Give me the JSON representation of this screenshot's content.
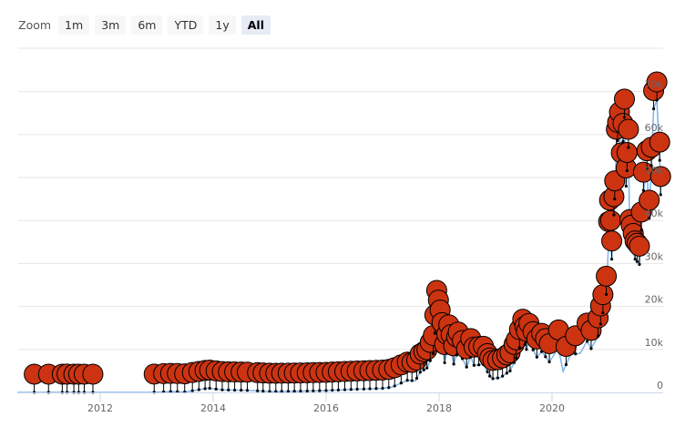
{
  "zoom": {
    "label": "Zoom",
    "buttons": [
      "1m",
      "3m",
      "6m",
      "YTD",
      "1y",
      "All"
    ],
    "active": "All"
  },
  "chart_data": {
    "type": "line",
    "title": "",
    "xlabel": "",
    "ylabel": "",
    "ylim": [
      0,
      80000
    ],
    "xlim": [
      "2010-07",
      "2021-12"
    ],
    "x_ticks": [
      "2012",
      "2014",
      "2016",
      "2018",
      "2020"
    ],
    "y_ticks": [
      {
        "v": 0,
        "label": "0"
      },
      {
        "v": 10000,
        "label": "10k"
      },
      {
        "v": 20000,
        "label": "20k"
      },
      {
        "v": 30000,
        "label": "30k"
      },
      {
        "v": 40000,
        "label": "40k"
      },
      {
        "v": 50000,
        "label": "50k"
      },
      {
        "v": 60000,
        "label": "60k"
      },
      {
        "v": 70000,
        "label": "70k"
      }
    ],
    "grid": true,
    "line_color": "#7cb5ec",
    "flag_color": "#cc3311",
    "series": [
      {
        "values": [
          [
            "2010-07-15",
            0.1
          ],
          [
            "2010-11-01",
            0.3
          ],
          [
            "2011-06-08",
            15
          ],
          [
            "2011-12-01",
            3
          ],
          [
            "2012-06-01",
            6
          ],
          [
            "2012-12-01",
            13
          ],
          [
            "2013-04-09",
            200
          ],
          [
            "2013-07-01",
            90
          ],
          [
            "2013-12-01",
            1000
          ],
          [
            "2014-03-01",
            600
          ],
          [
            "2014-09-01",
            450
          ],
          [
            "2015-01-15",
            200
          ],
          [
            "2015-07-01",
            280
          ],
          [
            "2016-01-01",
            430
          ],
          [
            "2016-06-15",
            700
          ],
          [
            "2016-12-31",
            960
          ],
          [
            "2017-03-01",
            1200
          ],
          [
            "2017-06-10",
            2800
          ],
          [
            "2017-08-01",
            2700
          ],
          [
            "2017-09-01",
            4700
          ],
          [
            "2017-10-15",
            5700
          ],
          [
            "2017-11-25",
            9000
          ],
          [
            "2017-12-17",
            19500
          ],
          [
            "2018-01-15",
            13500
          ],
          [
            "2018-02-06",
            6900
          ],
          [
            "2018-03-05",
            11500
          ],
          [
            "2018-04-06",
            6600
          ],
          [
            "2018-05-05",
            9800
          ],
          [
            "2018-06-28",
            5900
          ],
          [
            "2018-07-25",
            8300
          ],
          [
            "2018-08-15",
            6300
          ],
          [
            "2018-10-15",
            6500
          ],
          [
            "2018-11-25",
            3800
          ],
          [
            "2018-12-15",
            3200
          ],
          [
            "2019-02-01",
            3450
          ],
          [
            "2019-04-05",
            5000
          ],
          [
            "2019-05-15",
            8000
          ],
          [
            "2019-06-26",
            12800
          ],
          [
            "2019-07-20",
            10000
          ],
          [
            "2019-08-05",
            11800
          ],
          [
            "2019-09-25",
            8200
          ],
          [
            "2019-10-26",
            9500
          ],
          [
            "2019-12-15",
            7100
          ],
          [
            "2020-02-12",
            10300
          ],
          [
            "2020-03-12",
            4900
          ],
          [
            "2020-05-01",
            8800
          ],
          [
            "2020-07-01",
            9100
          ],
          [
            "2020-08-15",
            11900
          ],
          [
            "2020-09-10",
            10200
          ],
          [
            "2020-10-25",
            13100
          ],
          [
            "2020-11-25",
            18500
          ],
          [
            "2020-12-17",
            22800
          ],
          [
            "2021-01-08",
            40500
          ],
          [
            "2021-01-22",
            31000
          ],
          [
            "2021-02-10",
            45000
          ],
          [
            "2021-02-21",
            57000
          ],
          [
            "2021-03-13",
            61000
          ],
          [
            "2021-03-25",
            51500
          ],
          [
            "2021-04-14",
            64000
          ],
          [
            "2021-04-25",
            48000
          ],
          [
            "2021-05-10",
            57000
          ],
          [
            "2021-05-19",
            36000
          ],
          [
            "2021-06-22",
            31000
          ],
          [
            "2021-07-20",
            29800
          ],
          [
            "2021-08-15",
            47000
          ],
          [
            "2021-09-07",
            52000
          ],
          [
            "2021-09-21",
            40500
          ],
          [
            "2021-10-20",
            66000
          ],
          [
            "2021-11-10",
            68000
          ],
          [
            "2021-11-28",
            54000
          ],
          [
            "2021-12-04",
            46000
          ]
        ]
      }
    ],
    "flags": [
      "2010-11-01",
      "2011-02-01",
      "2011-05-01",
      "2011-06-01",
      "2011-07-15",
      "2011-08-15",
      "2011-09-20",
      "2011-11-15",
      "2012-12-15",
      "2013-02-15",
      "2013-04-01",
      "2013-05-15",
      "2013-07-01",
      "2013-08-20",
      "2013-10-01",
      "2013-11-10",
      "2013-12-10",
      "2014-01-20",
      "2014-03-01",
      "2014-04-10",
      "2014-05-20",
      "2014-07-01",
      "2014-08-10",
      "2014-10-15",
      "2014-11-20",
      "2015-01-01",
      "2015-02-10",
      "2015-03-20",
      "2015-05-01",
      "2015-06-10",
      "2015-07-20",
      "2015-09-01",
      "2015-10-10",
      "2015-11-20",
      "2016-01-01",
      "2016-02-10",
      "2016-03-20",
      "2016-05-01",
      "2016-06-10",
      "2016-07-20",
      "2016-09-01",
      "2016-10-10",
      "2016-11-20",
      "2017-01-01",
      "2017-02-10",
      "2017-03-20",
      "2017-05-01",
      "2017-06-10",
      "2017-07-10",
      "2017-08-10",
      "2017-09-01",
      "2017-09-25",
      "2017-10-15",
      "2017-11-05",
      "2017-11-25",
      "2017-12-05",
      "2017-12-17",
      "2017-12-28",
      "2018-01-08",
      "2018-01-20",
      "2018-02-06",
      "2018-02-20",
      "2018-03-05",
      "2018-03-20",
      "2018-04-06",
      "2018-04-25",
      "2018-05-05",
      "2018-06-01",
      "2018-06-28",
      "2018-07-25",
      "2018-08-15",
      "2018-09-15",
      "2018-10-15",
      "2018-11-10",
      "2018-11-25",
      "2018-12-15",
      "2019-01-15",
      "2019-02-15",
      "2019-03-15",
      "2019-04-05",
      "2019-05-01",
      "2019-05-15",
      "2019-06-05",
      "2019-06-26",
      "2019-07-10",
      "2019-07-20",
      "2019-08-05",
      "2019-09-01",
      "2019-09-25",
      "2019-10-26",
      "2019-11-20",
      "2019-12-15",
      "2020-02-12",
      "2020-04-01",
      "2020-06-01",
      "2020-08-15",
      "2020-09-10",
      "2020-10-25",
      "2020-11-10",
      "2020-11-25",
      "2020-12-17",
      "2021-01-02",
      "2021-01-08",
      "2021-01-15",
      "2021-01-22",
      "2021-02-05",
      "2021-02-10",
      "2021-02-21",
      "2021-03-01",
      "2021-03-13",
      "2021-03-25",
      "2021-04-05",
      "2021-04-14",
      "2021-04-25",
      "2021-05-01",
      "2021-05-10",
      "2021-05-19",
      "2021-05-28",
      "2021-06-10",
      "2021-06-22",
      "2021-07-05",
      "2021-07-20",
      "2021-08-01",
      "2021-08-15",
      "2021-09-07",
      "2021-09-21",
      "2021-10-05",
      "2021-10-20",
      "2021-11-10",
      "2021-11-28",
      "2021-12-04"
    ]
  }
}
